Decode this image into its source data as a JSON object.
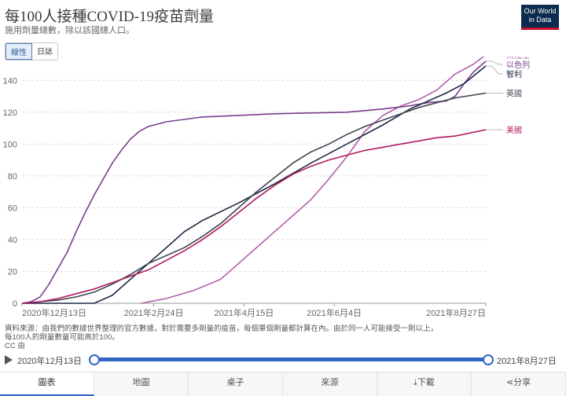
{
  "header": {
    "title": "每100人接種COVID-19疫苗劑量",
    "subtitle": "施用劑量總數，除以該國總人口。",
    "logo_line1": "Our World",
    "logo_line2": "in Data"
  },
  "scale_toggle": {
    "linear": "線性",
    "log": "日誌"
  },
  "chart_data": {
    "type": "line",
    "title": "每100人接種COVID-19疫苗劑量",
    "x_tick_labels": [
      "2020年12月13日",
      "2021年2月24日",
      "2021年4月15日",
      "2021年6月4日",
      "2021年8月27日"
    ],
    "x_tick_days": [
      0,
      73,
      123,
      173,
      257
    ],
    "x_range_days": [
      0,
      257
    ],
    "ylim": [
      0,
      150
    ],
    "y_ticks": [
      0,
      20,
      40,
      60,
      80,
      100,
      120,
      140
    ],
    "grid": true,
    "series": [
      {
        "name": "烏拉圭",
        "color": "#b25fa7",
        "end_label": "烏拉圭",
        "points": [
          [
            66,
            0
          ],
          [
            80,
            3
          ],
          [
            95,
            8
          ],
          [
            110,
            15
          ],
          [
            120,
            25
          ],
          [
            130,
            35
          ],
          [
            140,
            45
          ],
          [
            150,
            55
          ],
          [
            160,
            65
          ],
          [
            170,
            78
          ],
          [
            180,
            92
          ],
          [
            190,
            108
          ],
          [
            200,
            118
          ],
          [
            210,
            124
          ],
          [
            220,
            128
          ],
          [
            230,
            134
          ],
          [
            240,
            144
          ],
          [
            250,
            150
          ],
          [
            257,
            156
          ]
        ]
      },
      {
        "name": "以色列",
        "color": "#7a3e8c",
        "end_label": "以色列",
        "points": [
          [
            0,
            0
          ],
          [
            5,
            1
          ],
          [
            10,
            4
          ],
          [
            15,
            12
          ],
          [
            20,
            22
          ],
          [
            25,
            32
          ],
          [
            30,
            45
          ],
          [
            35,
            57
          ],
          [
            40,
            68
          ],
          [
            45,
            78
          ],
          [
            50,
            88
          ],
          [
            55,
            96
          ],
          [
            60,
            103
          ],
          [
            65,
            108
          ],
          [
            70,
            111
          ],
          [
            80,
            114
          ],
          [
            100,
            117
          ],
          [
            140,
            119
          ],
          [
            180,
            120
          ],
          [
            200,
            122
          ],
          [
            215,
            124
          ],
          [
            225,
            126
          ],
          [
            235,
            127
          ],
          [
            240,
            130
          ],
          [
            245,
            138
          ],
          [
            250,
            145
          ],
          [
            257,
            152
          ]
        ]
      },
      {
        "name": "智利",
        "color": "#1f2a44",
        "end_label": "智利",
        "points": [
          [
            0,
            0
          ],
          [
            40,
            0
          ],
          [
            50,
            5
          ],
          [
            60,
            15
          ],
          [
            70,
            25
          ],
          [
            80,
            35
          ],
          [
            90,
            45
          ],
          [
            100,
            52
          ],
          [
            120,
            63
          ],
          [
            140,
            75
          ],
          [
            160,
            88
          ],
          [
            180,
            100
          ],
          [
            200,
            112
          ],
          [
            215,
            122
          ],
          [
            225,
            127
          ],
          [
            235,
            132
          ],
          [
            245,
            138
          ],
          [
            257,
            149
          ]
        ]
      },
      {
        "name": "英國",
        "color": "#3d4450",
        "end_label": "英國",
        "points": [
          [
            0,
            0
          ],
          [
            10,
            1
          ],
          [
            20,
            2
          ],
          [
            30,
            4
          ],
          [
            40,
            7
          ],
          [
            50,
            12
          ],
          [
            60,
            18
          ],
          [
            70,
            25
          ],
          [
            80,
            30
          ],
          [
            90,
            35
          ],
          [
            100,
            42
          ],
          [
            110,
            50
          ],
          [
            120,
            60
          ],
          [
            130,
            70
          ],
          [
            140,
            79
          ],
          [
            150,
            88
          ],
          [
            160,
            95
          ],
          [
            170,
            100
          ],
          [
            180,
            106
          ],
          [
            190,
            111
          ],
          [
            200,
            115
          ],
          [
            210,
            119
          ],
          [
            220,
            123
          ],
          [
            230,
            126
          ],
          [
            240,
            129
          ],
          [
            257,
            132
          ]
        ]
      },
      {
        "name": "美國",
        "color": "#b0195e",
        "end_label": "美國",
        "points": [
          [
            0,
            0
          ],
          [
            10,
            1
          ],
          [
            20,
            3
          ],
          [
            30,
            6
          ],
          [
            40,
            9
          ],
          [
            50,
            13
          ],
          [
            60,
            17
          ],
          [
            70,
            21
          ],
          [
            80,
            27
          ],
          [
            90,
            33
          ],
          [
            100,
            40
          ],
          [
            110,
            48
          ],
          [
            120,
            57
          ],
          [
            130,
            66
          ],
          [
            140,
            74
          ],
          [
            150,
            81
          ],
          [
            160,
            86
          ],
          [
            170,
            90
          ],
          [
            180,
            93
          ],
          [
            190,
            96
          ],
          [
            200,
            98
          ],
          [
            210,
            100
          ],
          [
            220,
            102
          ],
          [
            230,
            104
          ],
          [
            240,
            105
          ],
          [
            257,
            109
          ]
        ]
      }
    ]
  },
  "source_text": {
    "line1": "資料來源：由我們的數據世界整理的官方數據，對於需要多劑量的疫苗，每個單個劑量都計算在內。由於同一人可能接受一劑以上，",
    "line2": "每100人的劑量數量可能高於100。",
    "line3": "CC 由"
  },
  "timeline": {
    "start_label": "2020年12月13日",
    "end_label": "2021年8月27日"
  },
  "tabs": [
    "圖表",
    "地圖",
    "桌子",
    "來源",
    "下載",
    "分享"
  ]
}
